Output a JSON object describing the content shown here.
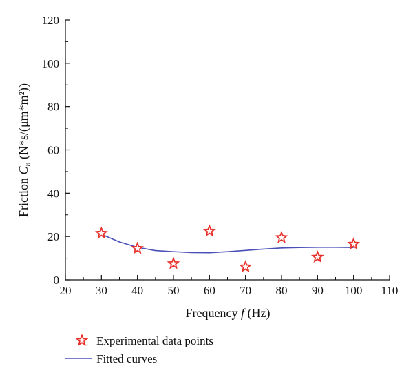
{
  "chart_data": {
    "type": "scatter",
    "xlabel": {
      "prefix": "Frequency ",
      "var": "f",
      "suffix": " (Hz)"
    },
    "ylabel": {
      "prefix": "Friction ",
      "var": "C",
      "sub": "n",
      "suffix": " (N*s/(μm*m²))"
    },
    "xlim": [
      20,
      110
    ],
    "ylim": [
      0,
      120
    ],
    "xticks": [
      20,
      30,
      40,
      50,
      60,
      70,
      80,
      90,
      100,
      110
    ],
    "yticks": [
      0,
      20,
      40,
      60,
      80,
      100,
      120
    ],
    "grid": false,
    "legend_position": "bottom",
    "series": [
      {
        "name": "Experimental data points",
        "kind": "markers",
        "marker": "star",
        "color": "#e8302a",
        "x": [
          30,
          40,
          50,
          60,
          70,
          80,
          90,
          100
        ],
        "y": [
          21.5,
          14.5,
          7.5,
          22.5,
          6,
          19.5,
          10.5,
          16.5
        ]
      },
      {
        "name": "Fitted curves",
        "kind": "line",
        "color": "#4a4fb8",
        "x": [
          30,
          35,
          40,
          45,
          50,
          55,
          60,
          65,
          70,
          75,
          80,
          85,
          90,
          95,
          100
        ],
        "y": [
          21,
          17.5,
          15,
          13.5,
          13,
          12.6,
          12.5,
          13,
          13.6,
          14.2,
          14.7,
          14.9,
          15,
          15,
          14.9
        ]
      }
    ]
  }
}
